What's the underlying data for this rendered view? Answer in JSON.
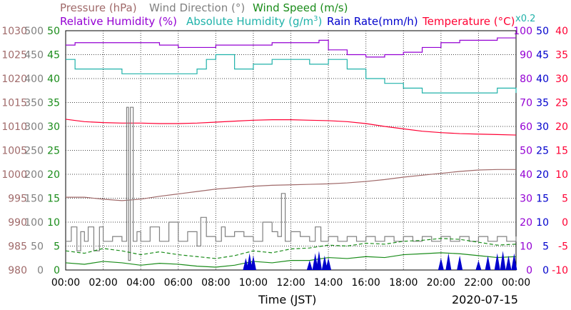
{
  "chart_data": {
    "type": "line",
    "legend": {
      "pressure": "Pressure (hPa)",
      "wind_direction": "Wind Direction (°)",
      "wind_speed": "Wind Speed (m/s)",
      "relative_humidity": "Relative Humidity (%)",
      "absolute_humidity_base": "Absolute Humidity (g/m",
      "absolute_humidity_sup": "3",
      "absolute_humidity_close": ")",
      "rain_rate": "Rain Rate(mm/h)",
      "temperature": "Temperature (°C)",
      "rain_scale_note": "x0.2"
    },
    "colors": {
      "pressure": "#a06a6a",
      "wind_direction": "#808080",
      "wind_speed": "#1a8c1a",
      "relative_humidity": "#9400d3",
      "absolute_humidity": "#20b2aa",
      "rain_rate": "#0000cc",
      "temperature": "#ff0033"
    },
    "xlabel": "Time (JST)",
    "date": "2020-07-15",
    "x_ticks": [
      "00:00",
      "02:00",
      "04:00",
      "06:00",
      "08:00",
      "10:00",
      "12:00",
      "14:00",
      "16:00",
      "18:00",
      "20:00",
      "22:00",
      "00:00"
    ],
    "axes": {
      "pressure": {
        "range": [
          980,
          1030
        ],
        "ticks": [
          "1030",
          "1025",
          "1020",
          "1015",
          "1010",
          "1005",
          "1000",
          "995",
          "990",
          "985",
          "980"
        ]
      },
      "wind_direction": {
        "range": [
          0,
          500
        ],
        "ticks": [
          "500",
          "450",
          "400",
          "350",
          "300",
          "250",
          "200",
          "150",
          "100",
          "50",
          "0"
        ]
      },
      "wind_speed": {
        "range": [
          0,
          50
        ],
        "ticks": [
          "50",
          "45",
          "40",
          "35",
          "30",
          "25",
          "20",
          "15",
          "10",
          "5",
          "0"
        ]
      },
      "relative_humidity": {
        "range": [
          0,
          100
        ],
        "ticks": [
          "100",
          "90",
          "80",
          "70",
          "60",
          "50",
          "40",
          "30",
          "20",
          "10",
          "0"
        ]
      },
      "rain_rate": {
        "range": [
          0,
          50
        ],
        "ticks": [
          "50",
          "45",
          "40",
          "35",
          "30",
          "25",
          "20",
          "15",
          "10",
          "5",
          "0"
        ]
      },
      "temperature": {
        "range": [
          -10,
          40
        ],
        "ticks": [
          "40",
          "35",
          "30",
          "25",
          "20",
          "15",
          "10",
          "5",
          "0",
          "-5",
          "-10"
        ]
      }
    },
    "series": [
      {
        "key": "relative_humidity",
        "axis": "relative_humidity",
        "x": [
          0,
          0.5,
          1,
          2,
          3,
          4,
          5,
          6,
          7,
          8,
          9,
          10,
          11,
          12,
          13,
          13.5,
          14,
          15,
          16,
          17,
          18,
          19,
          20,
          21,
          22,
          23,
          24
        ],
        "values": [
          94,
          95,
          95,
          95,
          95,
          95,
          94,
          93,
          93,
          94,
          94,
          94,
          95,
          95,
          95,
          96,
          92,
          90,
          89,
          90,
          91,
          93,
          95,
          96,
          96,
          97,
          97
        ]
      },
      {
        "key": "absolute_humidity",
        "axis": "wind_speed",
        "x": [
          0,
          0.5,
          1,
          2,
          3,
          4,
          5,
          6,
          7,
          7.5,
          8,
          9,
          10,
          11,
          12,
          13,
          14,
          15,
          16,
          17,
          18,
          19,
          20,
          21,
          22,
          23,
          24
        ],
        "values": [
          44,
          42,
          42,
          42,
          41,
          41,
          41,
          41,
          42,
          44,
          45,
          42,
          43,
          44,
          44,
          43,
          44,
          42,
          40,
          39,
          38,
          37,
          37,
          37,
          37,
          38,
          37
        ]
      },
      {
        "key": "temperature",
        "axis": "temperature",
        "x": [
          0,
          1,
          2,
          3,
          4,
          5,
          6,
          7,
          8,
          9,
          10,
          11,
          12,
          13,
          14,
          15,
          16,
          17,
          18,
          19,
          20,
          21,
          22,
          23,
          24
        ],
        "values": [
          21.5,
          21.0,
          20.8,
          20.7,
          20.7,
          20.6,
          20.6,
          20.7,
          20.9,
          21.1,
          21.3,
          21.4,
          21.4,
          21.3,
          21.2,
          21.0,
          20.6,
          20.0,
          19.5,
          19.0,
          18.7,
          18.5,
          18.4,
          18.3,
          18.2
        ]
      },
      {
        "key": "pressure",
        "axis": "pressure",
        "x": [
          0,
          1,
          2,
          3,
          4,
          5,
          6,
          7,
          8,
          9,
          10,
          11,
          12,
          13,
          14,
          15,
          16,
          17,
          18,
          19,
          20,
          21,
          22,
          23,
          24
        ],
        "values": [
          995.2,
          995.2,
          994.8,
          994.5,
          994.8,
          995.4,
          995.9,
          996.4,
          996.9,
          997.2,
          997.5,
          997.7,
          997.8,
          997.9,
          998.0,
          998.2,
          998.5,
          998.9,
          999.4,
          999.8,
          1000.2,
          1000.6,
          1000.9,
          1001.0,
          1001.0
        ]
      },
      {
        "key": "wind_direction",
        "axis": "wind_direction",
        "x": [
          0,
          0.3,
          0.6,
          0.8,
          1.0,
          1.2,
          1.5,
          1.8,
          2.0,
          2.5,
          3.0,
          3.25,
          3.35,
          3.45,
          3.6,
          3.8,
          4.0,
          4.5,
          5.0,
          5.5,
          6.0,
          6.5,
          7.0,
          7.2,
          7.5,
          8.0,
          8.3,
          8.5,
          9.0,
          9.5,
          10.0,
          10.5,
          11.0,
          11.3,
          11.5,
          11.7,
          12.0,
          12.5,
          13.0,
          13.3,
          13.6,
          14.0,
          14.5,
          15.0,
          15.5,
          16.0,
          16.5,
          17.0,
          17.5,
          18.0,
          18.5,
          19.0,
          19.5,
          20.0,
          20.5,
          21.0,
          21.5,
          22.0,
          22.5,
          23.0,
          23.5,
          24.0
        ],
        "values": [
          60,
          90,
          40,
          80,
          60,
          90,
          40,
          90,
          60,
          70,
          60,
          340,
          20,
          340,
          60,
          80,
          60,
          90,
          60,
          100,
          60,
          80,
          50,
          110,
          70,
          60,
          90,
          70,
          80,
          70,
          60,
          100,
          80,
          70,
          160,
          60,
          80,
          70,
          60,
          90,
          60,
          70,
          60,
          70,
          60,
          70,
          60,
          70,
          60,
          70,
          60,
          70,
          60,
          70,
          60,
          70,
          60,
          70,
          60,
          70,
          60,
          70
        ]
      },
      {
        "key": "wind_speed_avg",
        "axis": "wind_speed",
        "x": [
          0,
          1,
          2,
          3,
          4,
          5,
          6,
          7,
          8,
          9,
          10,
          11,
          12,
          13,
          14,
          15,
          16,
          17,
          18,
          19,
          20,
          21,
          22,
          23,
          24
        ],
        "values": [
          1.5,
          1.2,
          1.8,
          1.5,
          1.0,
          1.4,
          1.2,
          0.8,
          0.6,
          1.0,
          1.8,
          1.5,
          2.0,
          2.0,
          2.6,
          2.4,
          2.8,
          2.6,
          3.2,
          3.4,
          3.6,
          3.4,
          3.0,
          2.6,
          2.8
        ]
      },
      {
        "key": "wind_speed_gust",
        "axis": "wind_speed",
        "x": [
          0,
          1,
          2,
          3,
          4,
          5,
          6,
          7,
          8,
          9,
          10,
          11,
          12,
          13,
          14,
          15,
          16,
          17,
          18,
          19,
          20,
          21,
          22,
          23,
          24
        ],
        "values": [
          4.0,
          3.5,
          4.5,
          4.0,
          3.2,
          3.8,
          3.2,
          2.8,
          2.4,
          3.0,
          4.0,
          3.6,
          4.4,
          4.6,
          5.2,
          5.0,
          5.6,
          5.4,
          6.0,
          6.2,
          6.6,
          6.4,
          5.8,
          5.2,
          5.4
        ]
      },
      {
        "key": "rain_rate",
        "axis": "rain_rate",
        "x": [
          9.6,
          9.8,
          10.0,
          13.0,
          13.3,
          13.5,
          13.8,
          14.0,
          20.0,
          20.4,
          21.0,
          22.0,
          22.5,
          23.0,
          23.3,
          23.6,
          23.9
        ],
        "values": [
          2.5,
          3.5,
          3.0,
          2.0,
          3.5,
          4.0,
          3.0,
          2.5,
          2.5,
          3.5,
          3.0,
          2.0,
          3.0,
          3.5,
          4.0,
          3.0,
          3.5
        ]
      }
    ]
  }
}
